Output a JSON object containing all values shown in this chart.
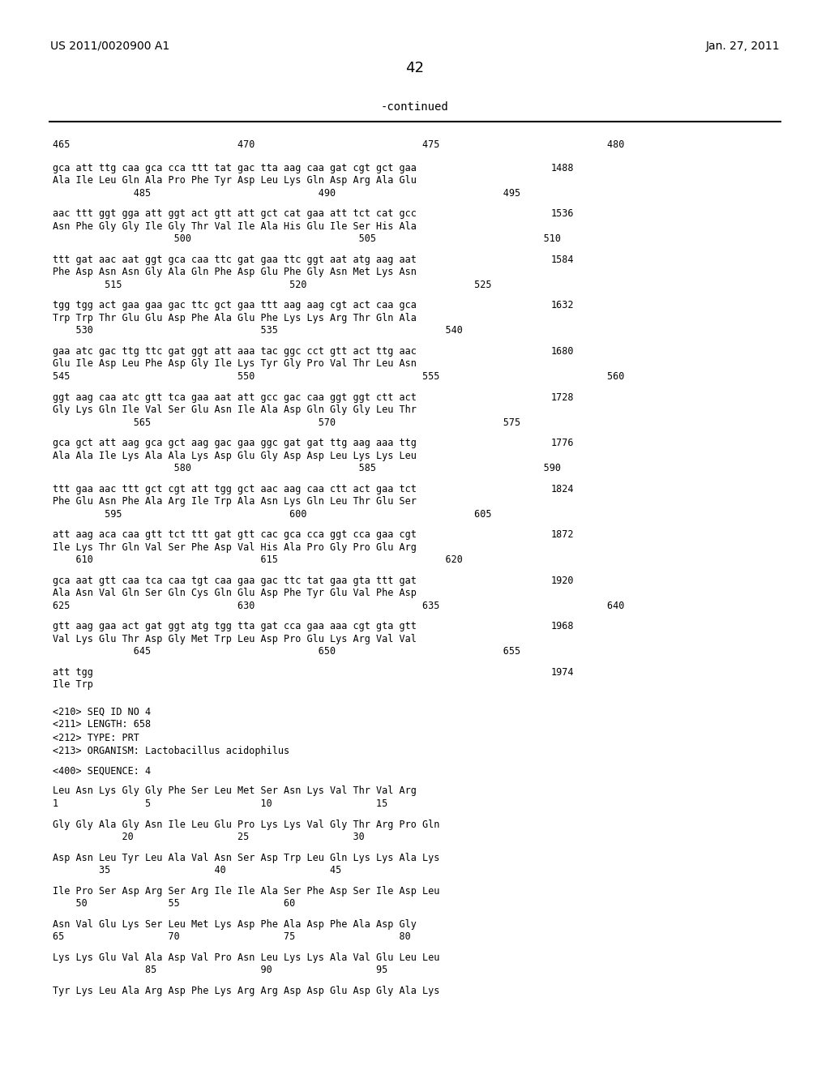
{
  "page_number": "42",
  "patent_number": "US 2011/0020900 A1",
  "patent_date": "Jan. 27, 2011",
  "continued_label": "-continued",
  "background_color": "#ffffff",
  "text_color": "#000000",
  "font_size_main": 9.5,
  "font_size_header": 11,
  "content": [
    {
      "type": "ruler_numbers",
      "text": "465                             470                             475                             480"
    },
    {
      "type": "blank"
    },
    {
      "type": "seq_line",
      "text": "gca att ttg caa gca cca ttt tat gac tta aag caa gat cgt gct gaa",
      "num": "1488"
    },
    {
      "type": "aa_line",
      "text": "Ala Ile Leu Gln Ala Pro Phe Tyr Asp Leu Lys Gln Asp Arg Ala Glu"
    },
    {
      "type": "ruler_numbers2",
      "text": "              485                             490                             495"
    },
    {
      "type": "blank"
    },
    {
      "type": "seq_line",
      "text": "aac ttt ggt gga att ggt act gtt att gct cat gaa att tct cat gcc",
      "num": "1536"
    },
    {
      "type": "aa_line",
      "text": "Asn Phe Gly Gly Ile Gly Thr Val Ile Ala His Glu Ile Ser His Ala"
    },
    {
      "type": "ruler_numbers2",
      "text": "                     500                             505                             510"
    },
    {
      "type": "blank"
    },
    {
      "type": "seq_line",
      "text": "ttt gat aac aat ggt gca caa ttc gat gaa ttc ggt aat atg aag aat",
      "num": "1584"
    },
    {
      "type": "aa_line",
      "text": "Phe Asp Asn Asn Gly Ala Gln Phe Asp Glu Phe Gly Asn Met Lys Asn"
    },
    {
      "type": "ruler_numbers2",
      "text": "         515                             520                             525"
    },
    {
      "type": "blank"
    },
    {
      "type": "seq_line",
      "text": "tgg tgg act gaa gaa gac ttc gct gaa ttt aag aag cgt act caa gca",
      "num": "1632"
    },
    {
      "type": "aa_line",
      "text": "Trp Trp Thr Glu Glu Asp Phe Ala Glu Phe Lys Lys Arg Thr Gln Ala"
    },
    {
      "type": "ruler_numbers2",
      "text": "    530                             535                             540"
    },
    {
      "type": "blank"
    },
    {
      "type": "seq_line",
      "text": "gaa atc gac ttg ttc gat ggt att aaa tac ggc cct gtt act ttg aac",
      "num": "1680"
    },
    {
      "type": "aa_line",
      "text": "Glu Ile Asp Leu Phe Asp Gly Ile Lys Tyr Gly Pro Val Thr Leu Asn"
    },
    {
      "type": "ruler_numbers2",
      "text": "545                             550                             555                             560"
    },
    {
      "type": "blank"
    },
    {
      "type": "seq_line",
      "text": "ggt aag caa atc gtt tca gaa aat att gcc gac caa ggt ggt ctt act",
      "num": "1728"
    },
    {
      "type": "aa_line",
      "text": "Gly Lys Gln Ile Val Ser Glu Asn Ile Ala Asp Gln Gly Gly Leu Thr"
    },
    {
      "type": "ruler_numbers2",
      "text": "              565                             570                             575"
    },
    {
      "type": "blank"
    },
    {
      "type": "seq_line",
      "text": "gca gct att aag gca gct aag gac gaa ggc gat gat ttg aag aaa ttg",
      "num": "1776"
    },
    {
      "type": "aa_line",
      "text": "Ala Ala Ile Lys Ala Ala Lys Asp Glu Gly Asp Asp Leu Lys Lys Leu"
    },
    {
      "type": "ruler_numbers2",
      "text": "                     580                             585                             590"
    },
    {
      "type": "blank"
    },
    {
      "type": "seq_line",
      "text": "ttt gaa aac ttt gct cgt att tgg gct aac aag caa ctt act gaa tct",
      "num": "1824"
    },
    {
      "type": "aa_line",
      "text": "Phe Glu Asn Phe Ala Arg Ile Trp Ala Asn Lys Gln Leu Thr Glu Ser"
    },
    {
      "type": "ruler_numbers2",
      "text": "         595                             600                             605"
    },
    {
      "type": "blank"
    },
    {
      "type": "seq_line",
      "text": "att aag aca caa gtt tct ttt gat gtt cac gca cca ggt cca gaa cgt",
      "num": "1872"
    },
    {
      "type": "aa_line",
      "text": "Ile Lys Thr Gln Val Ser Phe Asp Val His Ala Pro Gly Pro Glu Arg"
    },
    {
      "type": "ruler_numbers2",
      "text": "    610                             615                             620"
    },
    {
      "type": "blank"
    },
    {
      "type": "seq_line",
      "text": "gca aat gtt caa tca caa tgt caa gaa gac ttc tat gaa gta ttt gat",
      "num": "1920"
    },
    {
      "type": "aa_line",
      "text": "Ala Asn Val Gln Ser Gln Cys Gln Glu Asp Phe Tyr Glu Val Phe Asp"
    },
    {
      "type": "ruler_numbers2",
      "text": "625                             630                             635                             640"
    },
    {
      "type": "blank"
    },
    {
      "type": "seq_line",
      "text": "gtt aag gaa act gat ggt atg tgg tta gat cca gaa aaa cgt gta gtt",
      "num": "1968"
    },
    {
      "type": "aa_line",
      "text": "Val Lys Glu Thr Asp Gly Met Trp Leu Asp Pro Glu Lys Arg Val Val"
    },
    {
      "type": "ruler_numbers2",
      "text": "              645                             650                             655"
    },
    {
      "type": "blank"
    },
    {
      "type": "seq_line",
      "text": "att tgg",
      "num": "1974"
    },
    {
      "type": "aa_line",
      "text": "Ile Trp"
    },
    {
      "type": "blank"
    },
    {
      "type": "blank"
    },
    {
      "type": "meta_line",
      "text": "<210> SEQ ID NO 4"
    },
    {
      "type": "meta_line",
      "text": "<211> LENGTH: 658"
    },
    {
      "type": "meta_line",
      "text": "<212> TYPE: PRT"
    },
    {
      "type": "meta_line",
      "text": "<213> ORGANISM: Lactobacillus acidophilus"
    },
    {
      "type": "blank"
    },
    {
      "type": "meta_line",
      "text": "<400> SEQUENCE: 4"
    },
    {
      "type": "blank"
    },
    {
      "type": "seq_line2",
      "text": "Leu Asn Lys Gly Gly Phe Ser Leu Met Ser Asn Lys Val Thr Val Arg"
    },
    {
      "type": "ruler_numbers2",
      "text": "1               5                   10                  15"
    },
    {
      "type": "blank"
    },
    {
      "type": "seq_line2",
      "text": "Gly Gly Ala Gly Asn Ile Leu Glu Pro Lys Lys Val Gly Thr Arg Pro Gln"
    },
    {
      "type": "ruler_numbers2",
      "text": "            20                  25                  30"
    },
    {
      "type": "blank"
    },
    {
      "type": "seq_line2",
      "text": "Asp Asn Leu Tyr Leu Ala Val Asn Ser Asp Trp Leu Gln Lys Lys Ala Lys"
    },
    {
      "type": "ruler_numbers2",
      "text": "        35                  40                  45"
    },
    {
      "type": "blank"
    },
    {
      "type": "seq_line2",
      "text": "Ile Pro Ser Asp Arg Ser Arg Ile Ile Ala Ser Phe Asp Ser Ile Asp Leu"
    },
    {
      "type": "ruler_numbers2",
      "text": "    50              55                  60"
    },
    {
      "type": "blank"
    },
    {
      "type": "seq_line2",
      "text": "Asn Val Glu Lys Ser Leu Met Lys Asp Phe Ala Asp Phe Ala Asp Gly"
    },
    {
      "type": "ruler_numbers2",
      "text": "65                  70                  75                  80"
    },
    {
      "type": "blank"
    },
    {
      "type": "seq_line2",
      "text": "Lys Lys Glu Val Ala Asp Val Pro Asn Leu Lys Lys Ala Val Glu Leu Leu"
    },
    {
      "type": "ruler_numbers2",
      "text": "                85                  90                  95"
    },
    {
      "type": "blank"
    },
    {
      "type": "seq_line2",
      "text": "Tyr Lys Leu Ala Arg Asp Phe Lys Arg Arg Asp Asp Glu Asp Gly Ala Lys"
    }
  ]
}
